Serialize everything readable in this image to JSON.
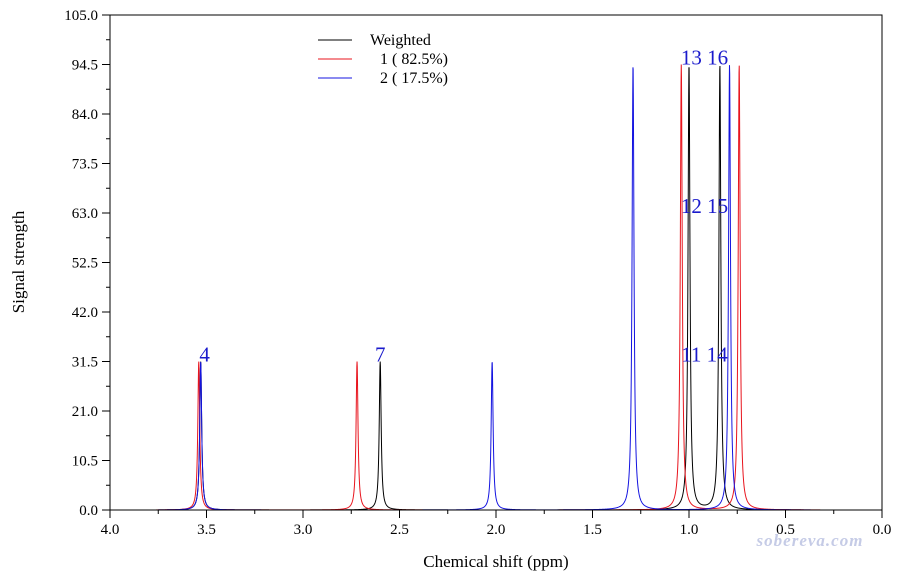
{
  "chart_data": {
    "type": "line",
    "title": "",
    "xlabel": "Chemical shift (ppm)",
    "ylabel": "Signal strength",
    "xlim": [
      4.0,
      0.0
    ],
    "ylim": [
      0.0,
      105.0
    ],
    "x_reversed": true,
    "x_ticks": [
      "4.0",
      "3.5",
      "3.0",
      "2.5",
      "2.0",
      "1.5",
      "1.0",
      "0.5",
      "0.0"
    ],
    "y_ticks": [
      "0.0",
      "10.5",
      "21.0",
      "31.5",
      "42.0",
      "52.5",
      "63.0",
      "73.5",
      "84.0",
      "94.5",
      "105.0"
    ],
    "legend_position": "top-left",
    "grid": false,
    "series": [
      {
        "name": "Weighted",
        "color": "#000000",
        "peaks": [
          {
            "shift": 3.53,
            "height": 31.5
          },
          {
            "shift": 2.6,
            "height": 31.5
          },
          {
            "shift": 1.0,
            "height": 94.5
          },
          {
            "shift": 0.84,
            "height": 94.5
          }
        ]
      },
      {
        "name": "1 ( 82.5%)",
        "color": "#e8141d",
        "peaks": [
          {
            "shift": 3.54,
            "height": 31.5
          },
          {
            "shift": 2.72,
            "height": 31.5
          },
          {
            "shift": 1.04,
            "height": 94.5
          },
          {
            "shift": 0.74,
            "height": 94.5
          }
        ]
      },
      {
        "name": "2 ( 17.5%)",
        "color": "#1414e0",
        "peaks": [
          {
            "shift": 3.53,
            "height": 31.5
          },
          {
            "shift": 2.02,
            "height": 31.5
          },
          {
            "shift": 1.29,
            "height": 94.5
          },
          {
            "shift": 0.79,
            "height": 94.5
          }
        ]
      }
    ],
    "annotations": [
      {
        "text": "4",
        "x": 3.51,
        "y": 31.5
      },
      {
        "text": "7",
        "x": 2.6,
        "y": 31.5
      },
      {
        "text": "11 14",
        "x": 0.92,
        "y": 31.5
      },
      {
        "text": "12 15",
        "x": 0.92,
        "y": 63.0
      },
      {
        "text": "13 16",
        "x": 0.92,
        "y": 94.5
      }
    ],
    "annotation_color": "#1a1acc"
  },
  "watermark": "sobereva.com"
}
